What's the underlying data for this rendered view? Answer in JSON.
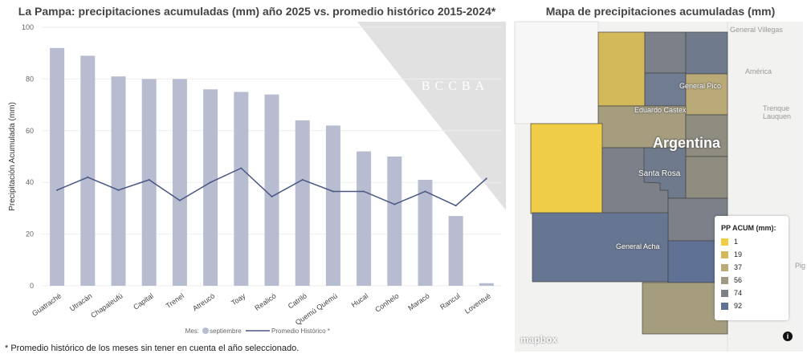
{
  "chart_data": {
    "type": "bar",
    "title": "La Pampa: precipitaciones acumuladas (mm) año 2025 vs. promedio histórico 2015-2024*",
    "ylabel": "Precipitación Acumulada (mm)",
    "xlabel": "",
    "ylim": [
      0,
      100
    ],
    "yticks": [
      0,
      20,
      40,
      60,
      80,
      100
    ],
    "categories": [
      "Guatraché",
      "Utracán",
      "Chapaleufú",
      "Capital",
      "Trenel",
      "Atreucó",
      "Toay",
      "Realicó",
      "Catriló",
      "Quemú Quemú",
      "Hucal",
      "Conhelo",
      "Maracó",
      "Rancul",
      "Loventué"
    ],
    "series": [
      {
        "name": "septiembre",
        "type": "bar",
        "color": "#b8bcd0",
        "values": [
          92,
          89,
          81,
          80,
          80,
          76,
          75,
          74,
          64,
          62,
          52,
          50,
          41,
          27,
          1
        ]
      },
      {
        "name": "Promedio Histórico *",
        "type": "line",
        "color": "#4a5784",
        "values": [
          37,
          42,
          37,
          41,
          33,
          40,
          45.5,
          34.5,
          41,
          36.5,
          36.5,
          31.5,
          36.5,
          31,
          41.5
        ]
      }
    ],
    "legend_prefix": "Mes:",
    "legend_position": "bottom",
    "grid": true
  },
  "watermark": "BCCBA",
  "footnote": "* Promedio histórico de los meses sin tener en cuenta el año seleccionado.",
  "map": {
    "title": "Mapa de precipitaciones acumuladas (mm)",
    "labels": {
      "country": "Argentina",
      "c1": "General Pico",
      "c2": "Eduardo Castex",
      "c3": "Santa Rosa",
      "c4": "General Acha"
    },
    "bg_labels": {
      "b1": "General Villegas",
      "b2": "América",
      "b3": "Trenque Lauquen",
      "b4": "Pig"
    },
    "legend": {
      "title": "PP ACUM (mm):",
      "items": [
        {
          "label": "1",
          "color": "#f0cd46"
        },
        {
          "label": "19",
          "color": "#d4b95a"
        },
        {
          "label": "37",
          "color": "#b9aa78"
        },
        {
          "label": "56",
          "color": "#a09a84"
        },
        {
          "label": "74",
          "color": "#7b8089"
        },
        {
          "label": "92",
          "color": "#5f7194"
        }
      ]
    },
    "attribution": "mapbox",
    "info_icon": "i"
  }
}
